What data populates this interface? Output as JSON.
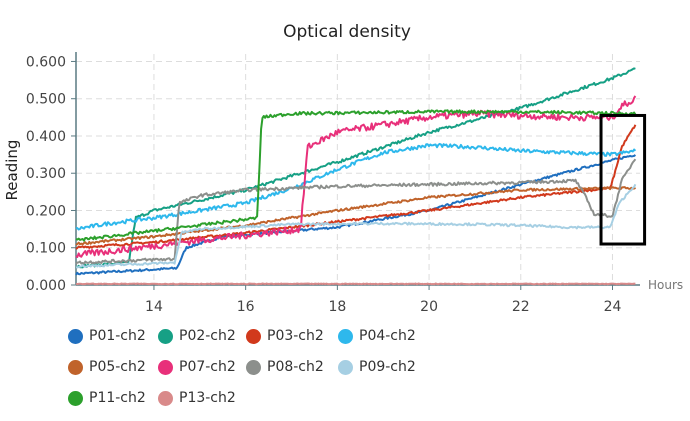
{
  "chart_data": {
    "type": "line",
    "title": "Optical density",
    "xlabel": "Hours",
    "ylabel": "Reading",
    "xlim": [
      12.3,
      24.6
    ],
    "ylim": [
      0,
      0.62
    ],
    "xticks": [
      14,
      16,
      18,
      20,
      22,
      24
    ],
    "xtick_labels": [
      "14",
      "16",
      "18",
      "20",
      "22",
      "24"
    ],
    "yticks": [
      0,
      0.1,
      0.2,
      0.3,
      0.4,
      0.5,
      0.6
    ],
    "ytick_labels": [
      "0.000",
      "0.100",
      "0.200",
      "0.300",
      "0.400",
      "0.500",
      "0.600"
    ],
    "grid": true,
    "highlight_box": {
      "x": [
        23.75,
        24.7
      ],
      "y": [
        0.11,
        0.455
      ]
    },
    "series": [
      {
        "name": "P01-ch2",
        "color": "#1f6fbf",
        "noise": 0.003,
        "points": [
          [
            12.3,
            0.03
          ],
          [
            14.5,
            0.045
          ],
          [
            14.7,
            0.1
          ],
          [
            15.5,
            0.13
          ],
          [
            18,
            0.155
          ],
          [
            20,
            0.2
          ],
          [
            22,
            0.27
          ],
          [
            24,
            0.335
          ],
          [
            24.5,
            0.35
          ]
        ]
      },
      {
        "name": "P02-ch2",
        "color": "#16a085",
        "noise": 0.004,
        "points": [
          [
            12.3,
            0.05
          ],
          [
            13.45,
            0.06
          ],
          [
            13.6,
            0.18
          ],
          [
            14,
            0.2
          ],
          [
            16,
            0.255
          ],
          [
            18,
            0.33
          ],
          [
            20,
            0.41
          ],
          [
            22,
            0.475
          ],
          [
            24,
            0.555
          ],
          [
            24.5,
            0.58
          ]
        ]
      },
      {
        "name": "P03-ch2",
        "color": "#d1391c",
        "noise": 0.003,
        "points": [
          [
            12.3,
            0.1
          ],
          [
            14,
            0.115
          ],
          [
            16,
            0.14
          ],
          [
            18,
            0.17
          ],
          [
            20,
            0.2
          ],
          [
            22,
            0.235
          ],
          [
            23.95,
            0.26
          ],
          [
            24.05,
            0.3
          ],
          [
            24.2,
            0.37
          ],
          [
            24.5,
            0.43
          ]
        ]
      },
      {
        "name": "P04-ch2",
        "color": "#2eb8ec",
        "noise": 0.005,
        "points": [
          [
            12.3,
            0.15
          ],
          [
            13,
            0.165
          ],
          [
            14,
            0.18
          ],
          [
            15,
            0.2
          ],
          [
            16,
            0.22
          ],
          [
            17,
            0.26
          ],
          [
            18,
            0.31
          ],
          [
            19,
            0.355
          ],
          [
            20,
            0.375
          ],
          [
            21,
            0.37
          ],
          [
            22,
            0.36
          ],
          [
            23,
            0.355
          ],
          [
            24,
            0.35
          ],
          [
            24.5,
            0.36
          ]
        ]
      },
      {
        "name": "P05-ch2",
        "color": "#c0632b",
        "noise": 0.003,
        "points": [
          [
            12.3,
            0.11
          ],
          [
            14,
            0.13
          ],
          [
            16,
            0.16
          ],
          [
            18,
            0.2
          ],
          [
            20,
            0.235
          ],
          [
            22,
            0.255
          ],
          [
            24,
            0.26
          ],
          [
            24.5,
            0.26
          ]
        ]
      },
      {
        "name": "P07-ch2",
        "color": "#e8307a",
        "noise": 0.009,
        "points": [
          [
            12.3,
            0.08
          ],
          [
            15,
            0.12
          ],
          [
            17.2,
            0.15
          ],
          [
            17.35,
            0.37
          ],
          [
            18,
            0.41
          ],
          [
            19,
            0.43
          ],
          [
            20,
            0.45
          ],
          [
            21,
            0.46
          ],
          [
            22,
            0.455
          ],
          [
            23,
            0.45
          ],
          [
            24,
            0.45
          ],
          [
            24.2,
            0.48
          ],
          [
            24.5,
            0.5
          ]
        ]
      },
      {
        "name": "P08-ch2",
        "color": "#8c8f8c",
        "noise": 0.004,
        "points": [
          [
            12.3,
            0.06
          ],
          [
            14.45,
            0.07
          ],
          [
            14.55,
            0.22
          ],
          [
            15,
            0.24
          ],
          [
            16,
            0.255
          ],
          [
            18,
            0.265
          ],
          [
            20,
            0.27
          ],
          [
            22,
            0.275
          ],
          [
            23.2,
            0.28
          ],
          [
            23.4,
            0.24
          ],
          [
            23.6,
            0.19
          ],
          [
            24.0,
            0.185
          ],
          [
            24.2,
            0.28
          ],
          [
            24.5,
            0.34
          ]
        ]
      },
      {
        "name": "P09-ch2",
        "color": "#a6cfe3",
        "noise": 0.003,
        "points": [
          [
            12.3,
            0.05
          ],
          [
            14.45,
            0.06
          ],
          [
            14.6,
            0.14
          ],
          [
            15,
            0.15
          ],
          [
            17,
            0.163
          ],
          [
            19,
            0.165
          ],
          [
            21,
            0.163
          ],
          [
            22,
            0.16
          ],
          [
            23,
            0.155
          ],
          [
            23.95,
            0.155
          ],
          [
            24.15,
            0.22
          ],
          [
            24.5,
            0.27
          ]
        ]
      },
      {
        "name": "P11-ch2",
        "color": "#2ca02c",
        "noise": 0.004,
        "points": [
          [
            12.3,
            0.12
          ],
          [
            14,
            0.145
          ],
          [
            16.25,
            0.18
          ],
          [
            16.35,
            0.45
          ],
          [
            17,
            0.46
          ],
          [
            20,
            0.465
          ],
          [
            22,
            0.465
          ],
          [
            24.5,
            0.46
          ]
        ]
      },
      {
        "name": "P13-ch2",
        "color": "#d98a8a",
        "noise": 0.001,
        "points": [
          [
            12.3,
            0.003
          ],
          [
            24.5,
            0.003
          ]
        ]
      }
    ],
    "legend": {
      "position": "bottom-left",
      "columns": 4
    }
  }
}
